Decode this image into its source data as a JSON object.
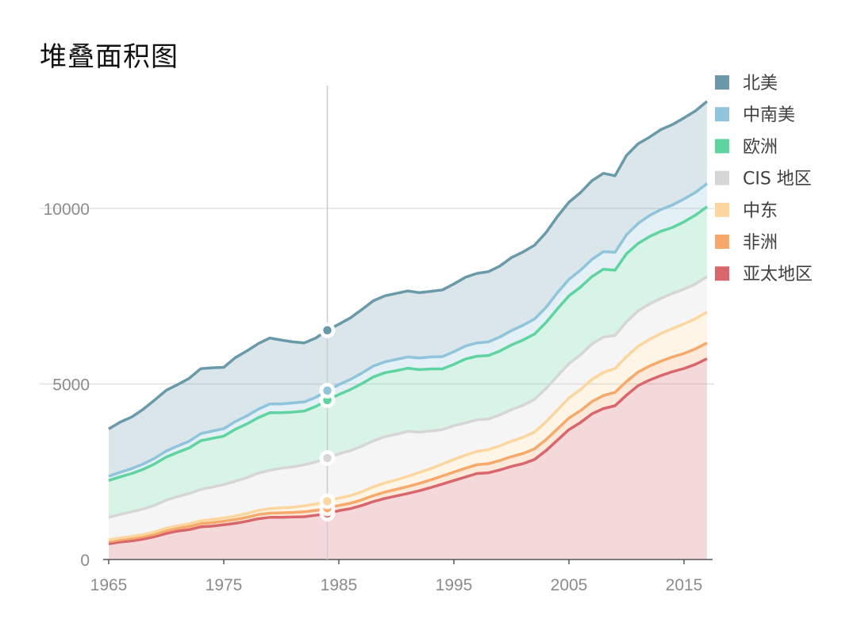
{
  "title": "堆叠面积图",
  "chart_data": {
    "type": "area",
    "stacked": true,
    "title": "堆叠面积图",
    "xlabel": "",
    "ylabel": "",
    "x": [
      1965,
      1966,
      1967,
      1968,
      1969,
      1970,
      1971,
      1972,
      1973,
      1974,
      1975,
      1976,
      1977,
      1978,
      1979,
      1980,
      1981,
      1982,
      1983,
      1984,
      1985,
      1986,
      1987,
      1988,
      1989,
      1990,
      1991,
      1992,
      1993,
      1994,
      1995,
      1996,
      1997,
      1998,
      1999,
      2000,
      2001,
      2002,
      2003,
      2004,
      2005,
      2006,
      2007,
      2008,
      2009,
      2010,
      2011,
      2012,
      2013,
      2014,
      2015,
      2016,
      2017
    ],
    "xlim": [
      1965,
      2017
    ],
    "ylim": [
      0,
      13500
    ],
    "x_ticks": [
      1965,
      1975,
      1985,
      1995,
      2005,
      2015
    ],
    "y_ticks": [
      0,
      5000,
      10000
    ],
    "grid": "horizontal",
    "legend_position": "right",
    "crosshair_x": 1984,
    "series": [
      {
        "name": "亚太地区",
        "color": "#d9666b",
        "values": [
          450,
          500,
          530,
          580,
          650,
          740,
          810,
          850,
          930,
          950,
          990,
          1030,
          1090,
          1160,
          1200,
          1200,
          1210,
          1220,
          1260,
          1310,
          1390,
          1450,
          1540,
          1650,
          1740,
          1810,
          1880,
          1960,
          2050,
          2150,
          2250,
          2350,
          2450,
          2470,
          2550,
          2650,
          2730,
          2850,
          3100,
          3400,
          3700,
          3900,
          4150,
          4300,
          4380,
          4680,
          4950,
          5110,
          5240,
          5350,
          5440,
          5560,
          5720
        ]
      },
      {
        "name": "非洲",
        "color": "#f5a96a",
        "values": [
          60,
          60,
          70,
          70,
          70,
          80,
          80,
          90,
          90,
          100,
          100,
          110,
          110,
          120,
          120,
          130,
          130,
          140,
          140,
          150,
          150,
          150,
          160,
          170,
          180,
          190,
          200,
          210,
          220,
          230,
          240,
          250,
          250,
          260,
          270,
          280,
          290,
          300,
          310,
          320,
          330,
          340,
          350,
          370,
          380,
          390,
          390,
          400,
          410,
          420,
          430,
          440,
          450
        ]
      },
      {
        "name": "中东",
        "color": "#fcd69e",
        "values": [
          50,
          55,
          60,
          60,
          65,
          70,
          75,
          80,
          85,
          90,
          95,
          100,
          110,
          120,
          130,
          140,
          150,
          170,
          180,
          200,
          210,
          220,
          230,
          250,
          260,
          270,
          290,
          310,
          320,
          340,
          360,
          370,
          380,
          400,
          420,
          440,
          460,
          480,
          510,
          540,
          570,
          600,
          630,
          660,
          680,
          710,
          730,
          760,
          790,
          810,
          840,
          860,
          880
        ]
      },
      {
        "name": "CIS 地区",
        "color": "#d6d6d6",
        "values": [
          640,
          670,
          700,
          730,
          760,
          800,
          830,
          860,
          890,
          920,
          950,
          990,
          1020,
          1060,
          1090,
          1130,
          1150,
          1170,
          1200,
          1230,
          1260,
          1280,
          1300,
          1310,
          1320,
          1300,
          1280,
          1150,
          1070,
          980,
          960,
          920,
          900,
          870,
          880,
          900,
          910,
          930,
          950,
          970,
          980,
          990,
          1010,
          1010,
          940,
          990,
          1010,
          1010,
          1000,
          1000,
          990,
          990,
          1010
        ]
      },
      {
        "name": "欧洲",
        "color": "#5fd4a0",
        "values": [
          1050,
          1070,
          1090,
          1130,
          1180,
          1230,
          1260,
          1300,
          1390,
          1390,
          1380,
          1480,
          1530,
          1580,
          1640,
          1580,
          1560,
          1530,
          1580,
          1650,
          1690,
          1740,
          1780,
          1820,
          1820,
          1810,
          1800,
          1780,
          1770,
          1730,
          1750,
          1820,
          1810,
          1810,
          1820,
          1840,
          1860,
          1860,
          1880,
          1910,
          1930,
          1930,
          1920,
          1930,
          1860,
          1940,
          1920,
          1920,
          1910,
          1880,
          1920,
          1960,
          1990
        ]
      },
      {
        "name": "中南美",
        "color": "#8fc4dc",
        "values": [
          120,
          130,
          140,
          150,
          160,
          170,
          180,
          190,
          200,
          210,
          210,
          220,
          230,
          240,
          250,
          250,
          260,
          260,
          260,
          270,
          280,
          290,
          300,
          310,
          310,
          320,
          320,
          330,
          340,
          350,
          360,
          370,
          380,
          390,
          400,
          410,
          420,
          430,
          430,
          460,
          470,
          480,
          490,
          500,
          510,
          540,
          570,
          600,
          620,
          640,
          650,
          650,
          660
        ]
      },
      {
        "name": "北美",
        "color": "#6a9aa9",
        "values": [
          1350,
          1430,
          1470,
          1560,
          1660,
          1730,
          1750,
          1790,
          1850,
          1800,
          1750,
          1820,
          1850,
          1870,
          1880,
          1820,
          1740,
          1680,
          1690,
          1720,
          1720,
          1750,
          1810,
          1860,
          1880,
          1880,
          1880,
          1860,
          1870,
          1900,
          1930,
          1960,
          1980,
          2000,
          2020,
          2080,
          2090,
          2100,
          2130,
          2170,
          2200,
          2210,
          2240,
          2230,
          2180,
          2260,
          2270,
          2230,
          2280,
          2290,
          2310,
          2320,
          2340
        ]
      }
    ],
    "highlight_values": {
      "亚太地区": 1310,
      "非洲": 1460,
      "中东": 1660,
      "CIS 地区": 2890,
      "欧洲": 4540,
      "中南美": 4810,
      "北美": 6530
    }
  },
  "legend_order": [
    "北美",
    "中南美",
    "欧洲",
    "CIS 地区",
    "中东",
    "非洲",
    "亚太地区"
  ]
}
